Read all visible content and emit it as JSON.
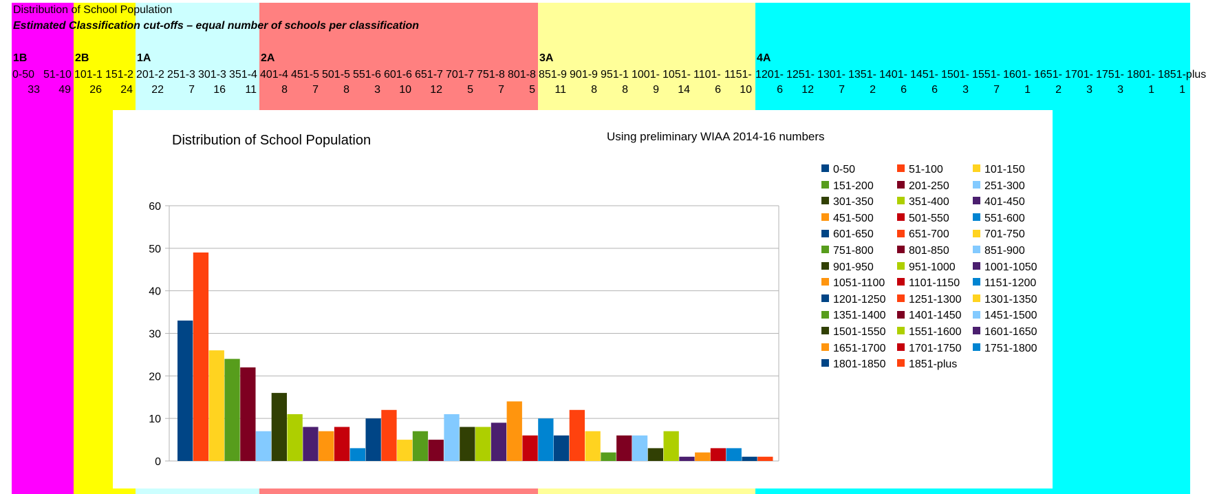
{
  "sheet": {
    "title": "Distribution of School Population",
    "subtitle": "Estimated Classification cut-offs – equal number of schools per classification",
    "classes": [
      {
        "label": "1B",
        "color": "#ff00ff"
      },
      {
        "label": "2B",
        "color": "#ffff00"
      },
      {
        "label": "1A",
        "color": "#ccffff"
      },
      {
        "label": "2A",
        "color": "#ff8080"
      },
      {
        "label": "3A",
        "color": "#ffff99"
      },
      {
        "label": "4A",
        "color": "#00ffff"
      }
    ],
    "range_cells": [
      "0-50",
      "51-10",
      "101-1",
      "151-2",
      "201-2",
      "251-3",
      "301-3",
      "351-4",
      "401-4",
      "451-5",
      "501-5",
      "551-6",
      "601-6",
      "651-7",
      "701-7",
      "751-8",
      "801-8",
      "851-9",
      "901-9",
      "951-1",
      "1001-",
      "1051-",
      "1101-",
      "1151-",
      "1201-",
      "1251-",
      "1301-",
      "1351-",
      "1401-",
      "1451-",
      "1501-",
      "1551-",
      "1601-",
      "1651-",
      "1701-",
      "1751-",
      "1801-",
      "1851-plus"
    ],
    "counts": [
      "33",
      "49",
      "26",
      "24",
      "22",
      "7",
      "16",
      "11",
      "8",
      "7",
      "8",
      "3",
      "10",
      "12",
      "5",
      "7",
      "5",
      "11",
      "8",
      "8",
      "9",
      "14",
      "6",
      "10",
      "6",
      "12",
      "7",
      "2",
      "6",
      "6",
      "3",
      "7",
      "1",
      "2",
      "3",
      "3",
      "1",
      "1"
    ]
  },
  "chart_data": {
    "type": "bar",
    "title": "Distribution of School Population",
    "subtitle": "Using preliminary WIAA 2014-16 numbers",
    "xlabel": "",
    "ylabel": "",
    "ylim": [
      0,
      60
    ],
    "yticks": [
      "0",
      "10",
      "20",
      "30",
      "40",
      "50",
      "60"
    ],
    "grid": true,
    "legend_position": "right",
    "series": [
      {
        "name": "0-50",
        "value": 33,
        "color": "#004586"
      },
      {
        "name": "51-100",
        "value": 49,
        "color": "#ff420e"
      },
      {
        "name": "101-150",
        "value": 26,
        "color": "#ffd320"
      },
      {
        "name": "151-200",
        "value": 24,
        "color": "#579d1c"
      },
      {
        "name": "201-250",
        "value": 22,
        "color": "#7e0021"
      },
      {
        "name": "251-300",
        "value": 7,
        "color": "#83caff"
      },
      {
        "name": "301-350",
        "value": 16,
        "color": "#314004"
      },
      {
        "name": "351-400",
        "value": 11,
        "color": "#aecf00"
      },
      {
        "name": "401-450",
        "value": 8,
        "color": "#4b1f6f"
      },
      {
        "name": "451-500",
        "value": 7,
        "color": "#ff950e"
      },
      {
        "name": "501-550",
        "value": 8,
        "color": "#c5000b"
      },
      {
        "name": "551-600",
        "value": 3,
        "color": "#0084d1"
      },
      {
        "name": "601-650",
        "value": 10,
        "color": "#004586"
      },
      {
        "name": "651-700",
        "value": 12,
        "color": "#ff420e"
      },
      {
        "name": "701-750",
        "value": 5,
        "color": "#ffd320"
      },
      {
        "name": "751-800",
        "value": 7,
        "color": "#579d1c"
      },
      {
        "name": "801-850",
        "value": 5,
        "color": "#7e0021"
      },
      {
        "name": "851-900",
        "value": 11,
        "color": "#83caff"
      },
      {
        "name": "901-950",
        "value": 8,
        "color": "#314004"
      },
      {
        "name": "951-1000",
        "value": 8,
        "color": "#aecf00"
      },
      {
        "name": "1001-1050",
        "value": 9,
        "color": "#4b1f6f"
      },
      {
        "name": "1051-1100",
        "value": 14,
        "color": "#ff950e"
      },
      {
        "name": "1101-1150",
        "value": 6,
        "color": "#c5000b"
      },
      {
        "name": "1151-1200",
        "value": 10,
        "color": "#0084d1"
      },
      {
        "name": "1201-1250",
        "value": 6,
        "color": "#004586"
      },
      {
        "name": "1251-1300",
        "value": 12,
        "color": "#ff420e"
      },
      {
        "name": "1301-1350",
        "value": 7,
        "color": "#ffd320"
      },
      {
        "name": "1351-1400",
        "value": 2,
        "color": "#579d1c"
      },
      {
        "name": "1401-1450",
        "value": 6,
        "color": "#7e0021"
      },
      {
        "name": "1451-1500",
        "value": 6,
        "color": "#83caff"
      },
      {
        "name": "1501-1550",
        "value": 3,
        "color": "#314004"
      },
      {
        "name": "1551-1600",
        "value": 7,
        "color": "#aecf00"
      },
      {
        "name": "1601-1650",
        "value": 1,
        "color": "#4b1f6f"
      },
      {
        "name": "1651-1700",
        "value": 2,
        "color": "#ff950e"
      },
      {
        "name": "1701-1750",
        "value": 3,
        "color": "#c5000b"
      },
      {
        "name": "1751-1800",
        "value": 3,
        "color": "#0084d1"
      },
      {
        "name": "1801-1850",
        "value": 1,
        "color": "#004586"
      },
      {
        "name": "1851-plus",
        "value": 1,
        "color": "#ff420e"
      }
    ]
  }
}
